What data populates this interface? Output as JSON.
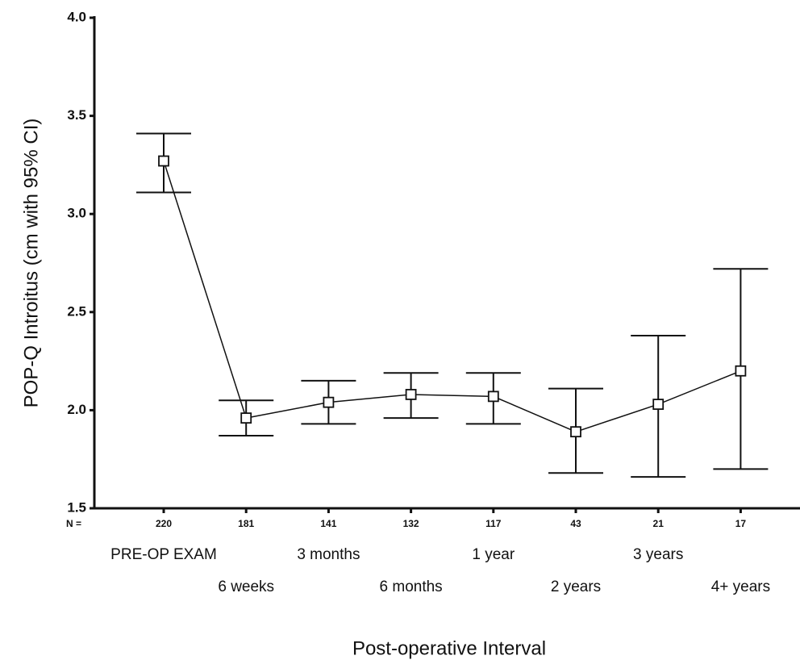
{
  "chart_data": {
    "type": "line",
    "y_label": "POP-Q Introitus (cm with 95% CI)",
    "x_label": "Post-operative Interval",
    "categories": [
      "PRE-OP EXAM",
      "6 weeks",
      "3 months",
      "6 months",
      "1 year",
      "2 years",
      "3 years",
      "4+ years"
    ],
    "n_label": "N =",
    "n_values": [
      220,
      181,
      141,
      132,
      117,
      43,
      21,
      17
    ],
    "series": [
      {
        "color": "#111111",
        "values": [
          3.27,
          1.96,
          2.04,
          2.08,
          2.07,
          1.89,
          2.03,
          2.2
        ],
        "lower": [
          3.11,
          1.87,
          1.93,
          1.96,
          1.93,
          1.68,
          1.66,
          1.7
        ],
        "upper": [
          3.41,
          2.05,
          2.15,
          2.19,
          2.19,
          2.11,
          2.38,
          2.72
        ]
      }
    ],
    "ylim": [
      1.5,
      4.0
    ],
    "yticks": [
      1.5,
      {
        "value": 2,
        "label": "2.0"
      },
      2.5,
      {
        "value": 3,
        "label": "3.0"
      },
      3.5,
      {
        "value": 4,
        "label": "4.0"
      }
    ]
  }
}
